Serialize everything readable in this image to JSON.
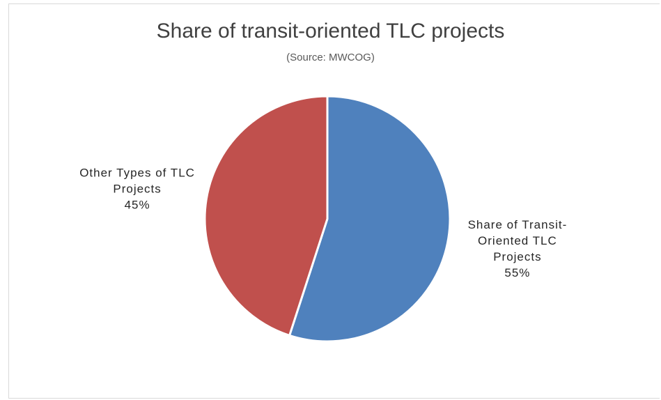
{
  "chart_data": {
    "type": "pie",
    "title": "Share of transit-oriented TLC projects",
    "subtitle": "(Source: MWCOG)",
    "categories": [
      "Share of Transit-Oriented TLC Projects",
      "Other Types of TLC Projects"
    ],
    "values": [
      55,
      45
    ],
    "value_labels": [
      "55%",
      "45%"
    ],
    "colors": [
      "#4f81bd",
      "#c0504d"
    ]
  }
}
